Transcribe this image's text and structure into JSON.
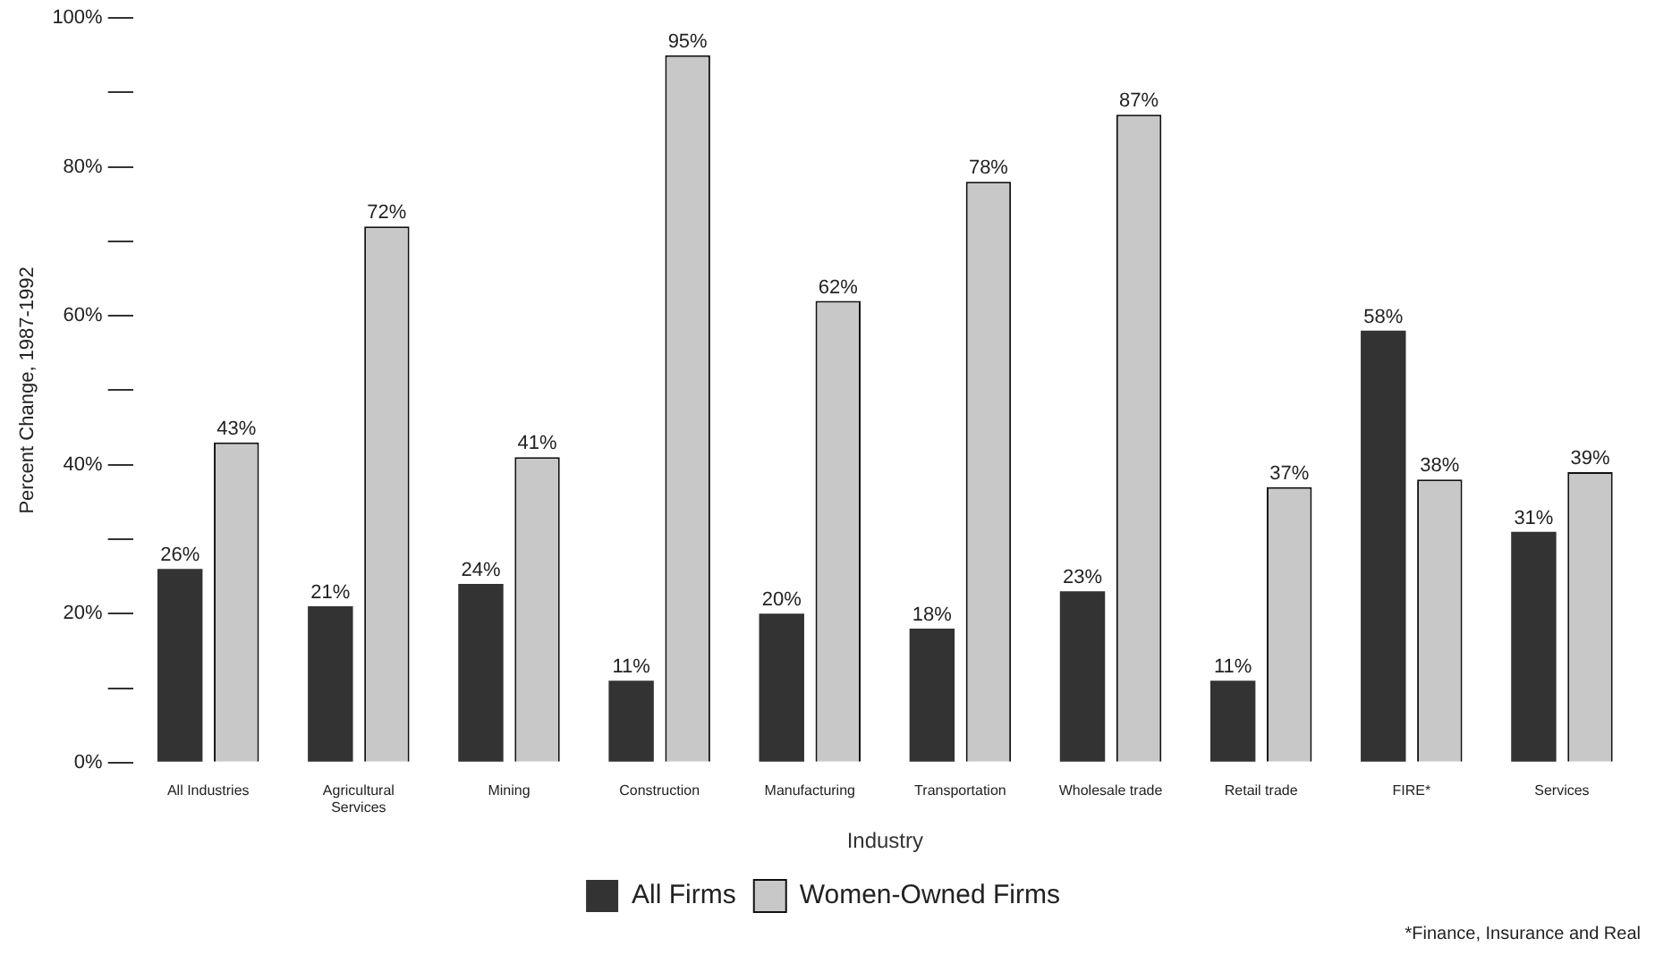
{
  "chart_data": {
    "type": "bar",
    "xlabel": "Industry",
    "ylabel": "Percent Change, 1987-1992",
    "categories": [
      "All Industries",
      "Agricultural\nServices",
      "Mining",
      "Construction",
      "Manufacturing",
      "Transportation",
      "Wholesale trade",
      "Retail trade",
      "FIRE*",
      "Services"
    ],
    "series": [
      {
        "name": "All Firms",
        "color": "#333333",
        "values": [
          26,
          21,
          24,
          11,
          20,
          18,
          23,
          11,
          58,
          31
        ],
        "value_labels": [
          "26%",
          "21%",
          "24%",
          "11%",
          "20%",
          "18%",
          "23%",
          "11%",
          "58%",
          "31%"
        ]
      },
      {
        "name": "Women-Owned Firms",
        "color": "#c8c8c8",
        "values": [
          43,
          72,
          41,
          95,
          62,
          78,
          87,
          37,
          38,
          39
        ],
        "value_labels": [
          "43%",
          "72%",
          "41%",
          "95%",
          "62%",
          "78%",
          "87%",
          "37%",
          "38%",
          "39%"
        ]
      }
    ],
    "ylim": [
      0,
      100
    ],
    "yticks": [
      {
        "value": 0,
        "label": "0%"
      },
      {
        "value": 10,
        "label": null
      },
      {
        "value": 20,
        "label": "20%"
      },
      {
        "value": 30,
        "label": null
      },
      {
        "value": 40,
        "label": "40%"
      },
      {
        "value": 50,
        "label": null
      },
      {
        "value": 60,
        "label": "60%"
      },
      {
        "value": 70,
        "label": null
      },
      {
        "value": 80,
        "label": "80%"
      },
      {
        "value": 90,
        "label": null
      },
      {
        "value": 100,
        "label": "100%"
      }
    ],
    "grid": false,
    "legend": "bottom",
    "annotations": [
      "*Finance, Insurance and Real"
    ]
  }
}
